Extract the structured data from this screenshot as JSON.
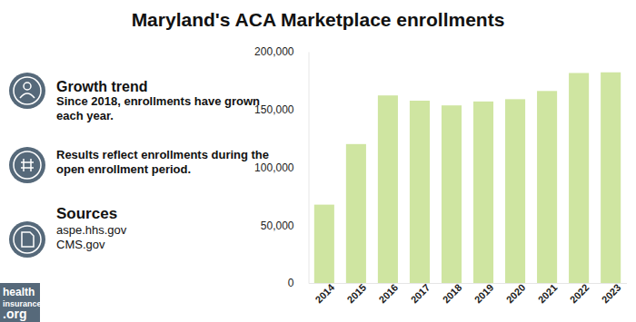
{
  "chart_data": {
    "type": "bar",
    "title": "Maryland's ACA Marketplace enrollments",
    "categories": [
      "2014",
      "2015",
      "2016",
      "2017",
      "2018",
      "2019",
      "2020",
      "2021",
      "2022",
      "2023"
    ],
    "values": [
      67757,
      120145,
      162177,
      157637,
      153571,
      156963,
      158934,
      166038,
      181603,
      182166
    ],
    "color": "#cfe5a1",
    "ylim": [
      0,
      200000
    ],
    "yticks": [
      0,
      {
        "value": 50000,
        "label": "50,000"
      },
      {
        "value": 100000,
        "label": "100,000"
      },
      {
        "value": 150000,
        "label": "150,000"
      },
      {
        "value": 200000,
        "label": "200,000"
      }
    ],
    "grid": false,
    "annotations": [
      "Growth trend",
      "Since 2018, enrollments have grown each year.",
      "Results reflect enrollments during the open enrollment period.",
      "Sources",
      "aspe.hhs.gov",
      "CMS.gov",
      "health",
      "insurance",
      ".org"
    ]
  }
}
